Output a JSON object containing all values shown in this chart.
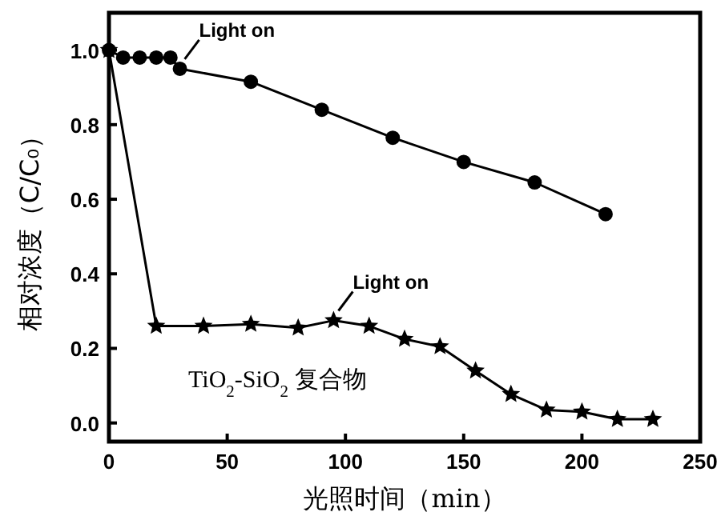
{
  "chart_data": {
    "type": "line",
    "xlabel": "光照时间（min）",
    "ylabel": "相对浓度（C/C₀）",
    "xlim": [
      0,
      250
    ],
    "xticks": [
      0,
      50,
      100,
      150,
      200,
      250
    ],
    "ylim": [
      -0.05,
      1.1
    ],
    "yticks": [
      {
        "value": 0,
        "label": "0.0"
      },
      {
        "value": 0.2,
        "label": "0.2"
      },
      {
        "value": 0.4,
        "label": "0.4"
      },
      {
        "value": 0.6,
        "label": "0.6"
      },
      {
        "value": 0.8,
        "label": "0.8"
      },
      {
        "value": 1,
        "label": "1.0"
      }
    ],
    "series": [
      {
        "color": "#000000",
        "marker": "circle",
        "x": [
          0,
          6,
          13,
          20,
          26,
          30,
          60,
          90,
          120,
          150,
          180,
          210
        ],
        "values": [
          1.0,
          0.98,
          0.98,
          0.98,
          0.98,
          0.95,
          0.915,
          0.84,
          0.765,
          0.7,
          0.645,
          0.56
        ]
      },
      {
        "name": "TiO$_{2}$-SiO$_{2}$ 复合物",
        "color": "#000000",
        "marker": "star",
        "x": [
          0,
          20,
          40,
          60,
          80,
          95,
          110,
          125,
          140,
          155,
          170,
          185,
          200,
          215,
          230
        ],
        "values": [
          1.0,
          0.26,
          0.26,
          0.265,
          0.255,
          0.275,
          0.26,
          0.225,
          0.205,
          0.14,
          0.077,
          0.035,
          0.03,
          0.01,
          0.01
        ]
      }
    ],
    "annotations": [
      {
        "text": "Light on",
        "x": 30,
        "y": 0.95
      },
      {
        "text": "Light on",
        "x": 95,
        "y": 0.275
      }
    ]
  }
}
